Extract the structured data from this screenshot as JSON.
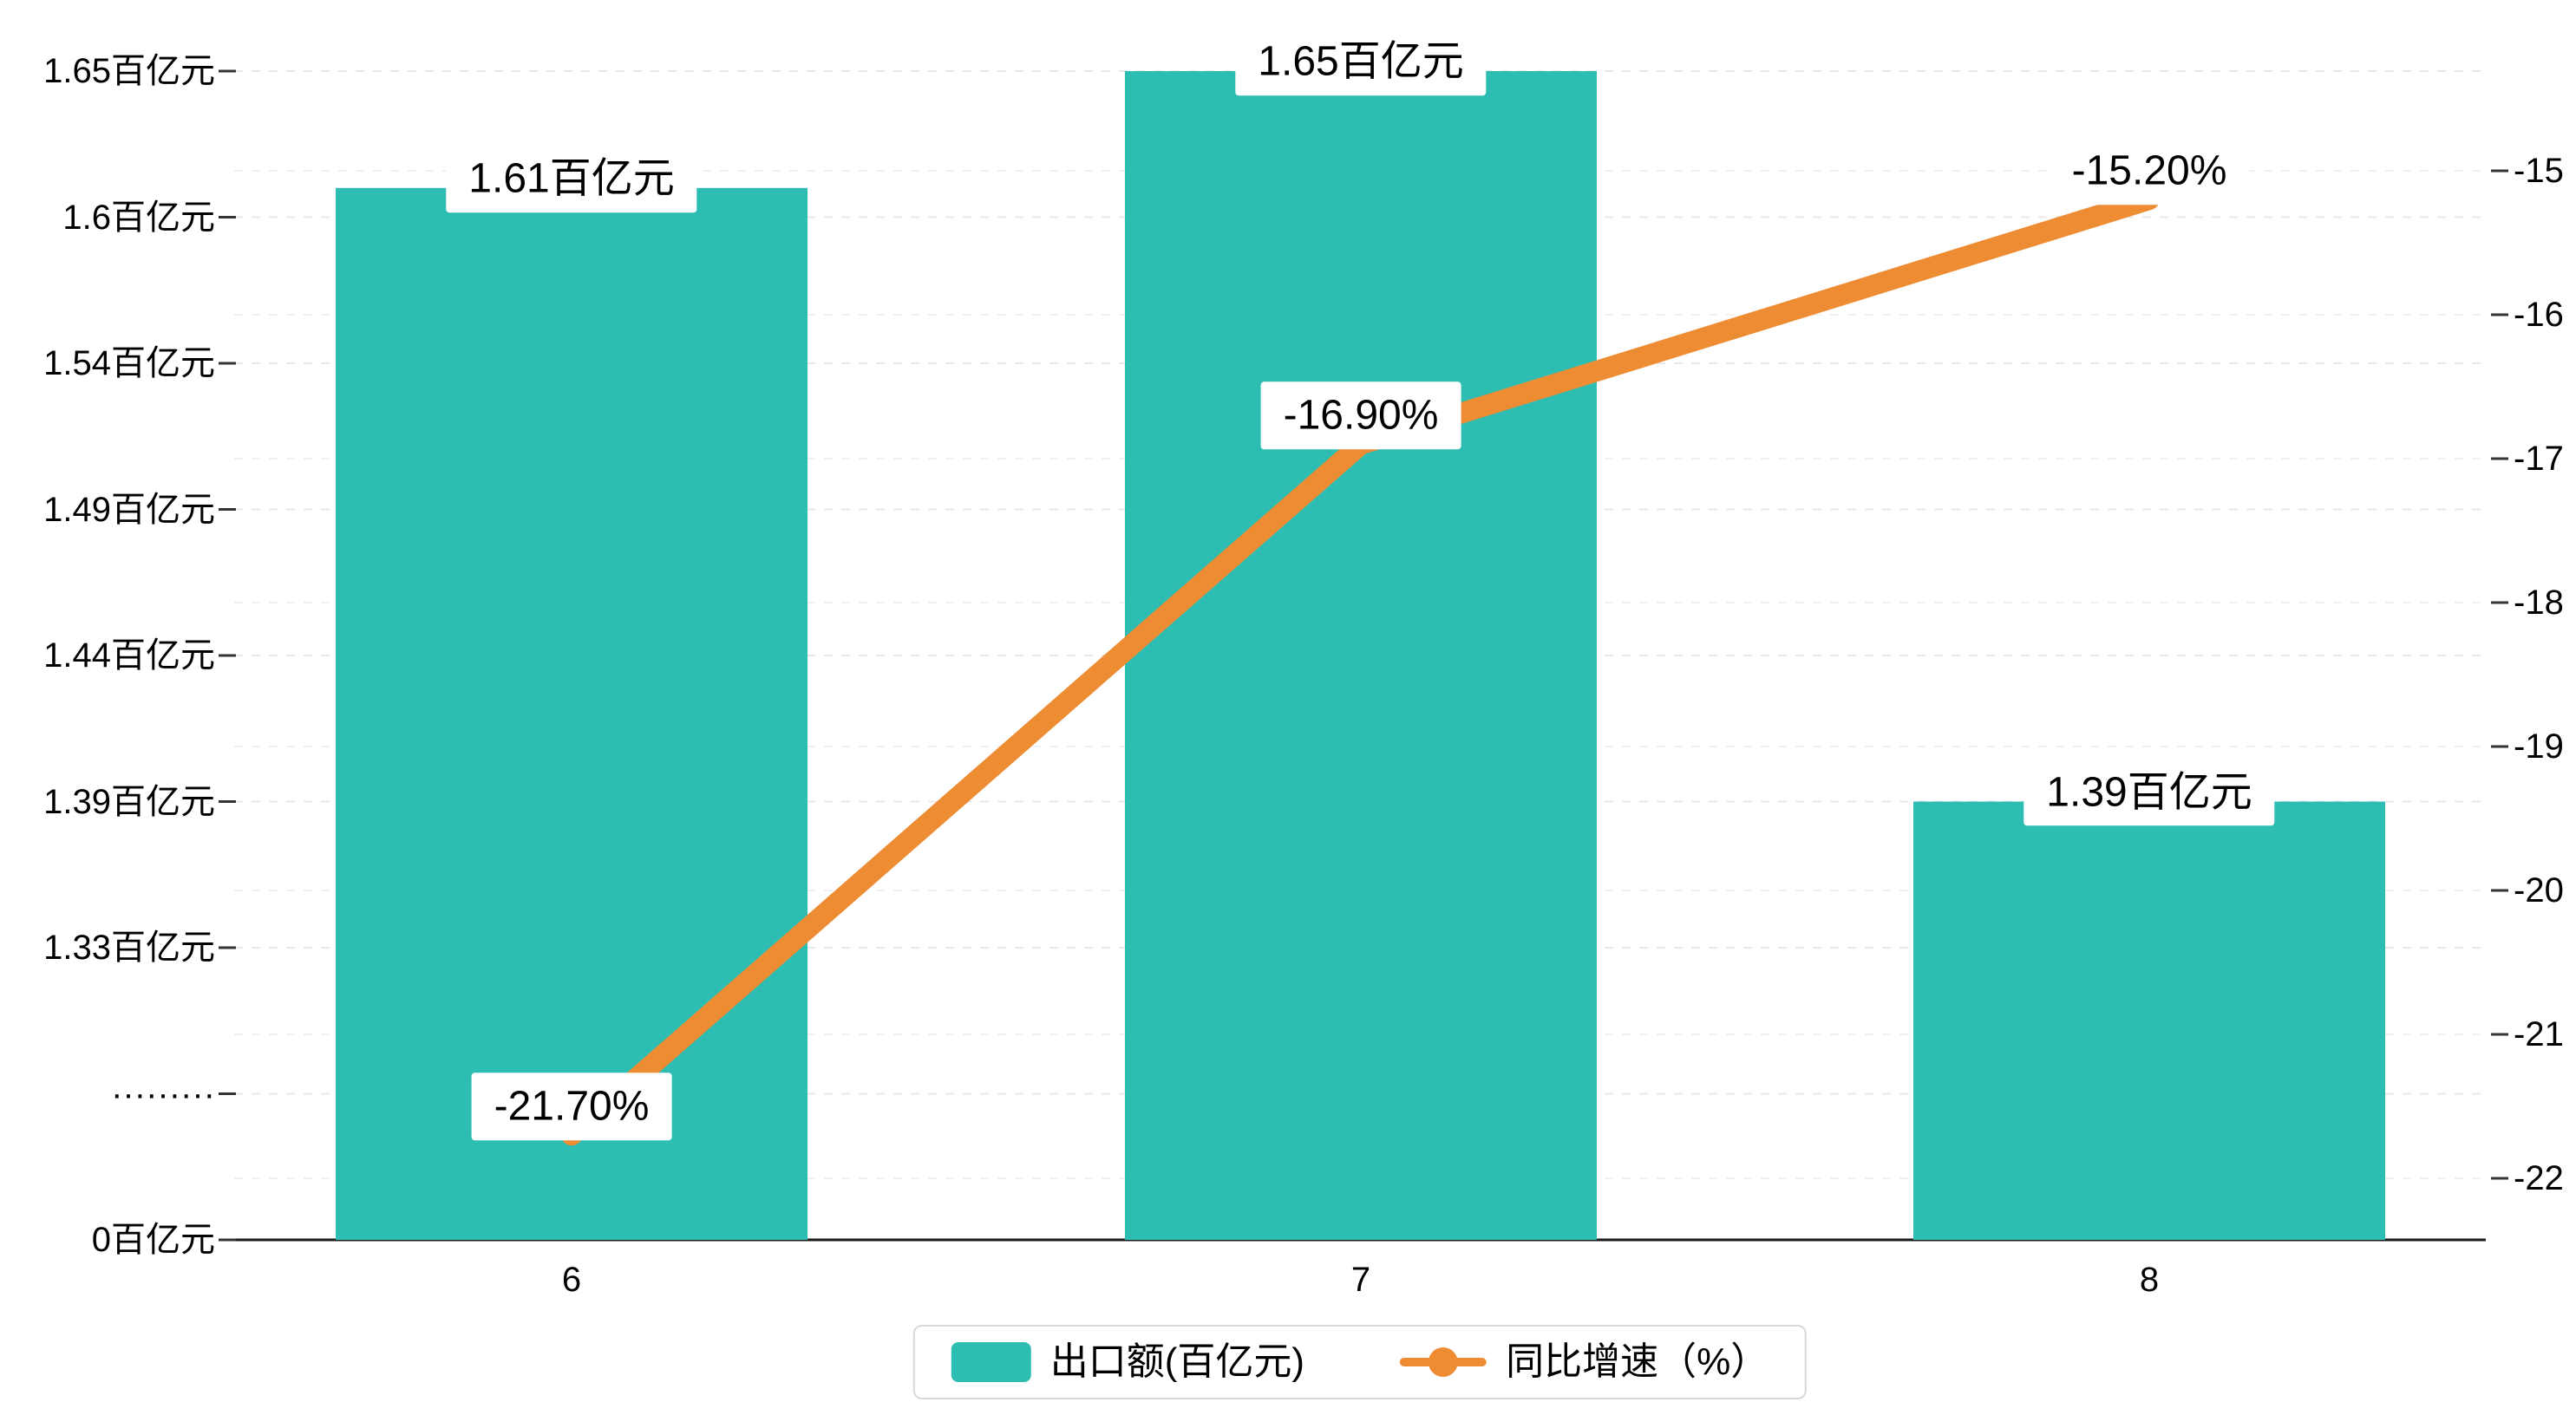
{
  "colors": {
    "bar": "#2dbdb2",
    "line": "#ee8c34",
    "grid_left": "#e8e8e8",
    "grid_right": "#f1f1f1",
    "axis_line": "#1a1a1a",
    "tick": "#333333",
    "text": "#000000",
    "label_box_bg": "#ffffff",
    "legend_border": "#d9d9d9",
    "background": "#ffffff"
  },
  "chart_data": {
    "type": "bar+line",
    "categories": [
      "6",
      "7",
      "8"
    ],
    "series": [
      {
        "name": "出口额(百亿元)",
        "type": "bar",
        "values": [
          1.61,
          1.65,
          1.39
        ],
        "data_labels": [
          "1.61百亿元",
          "1.65百亿元",
          "1.39百亿元"
        ],
        "color": "#2dbdb2",
        "value_axis": "left"
      },
      {
        "name": "同比增速（%）",
        "type": "line",
        "values": [
          -21.7,
          -16.9,
          -15.2
        ],
        "data_labels": [
          "-21.70%",
          "-16.90%",
          "-15.20%"
        ],
        "color": "#ee8c34",
        "value_axis": "right"
      }
    ],
    "left_axis": {
      "tick_labels": [
        "1.65百亿元",
        "1.6百亿元",
        "1.54百亿元",
        "1.49百亿元",
        "1.44百亿元",
        "1.39百亿元",
        "1.33百亿元",
        "·········",
        "0百亿元"
      ],
      "tick_values": [
        1.65,
        1.6,
        1.54,
        1.49,
        1.44,
        1.39,
        1.33,
        null,
        0
      ],
      "has_break": true
    },
    "right_axis": {
      "tick_labels": [
        "-15",
        "-16",
        "-17",
        "-18",
        "-19",
        "-20",
        "-21",
        "-22"
      ],
      "tick_values": [
        -15,
        -16,
        -17,
        -18,
        -19,
        -20,
        -21,
        -22
      ]
    },
    "x_axis": {
      "tick_labels": [
        "6",
        "7",
        "8"
      ]
    },
    "legend": {
      "items": [
        {
          "label": "出口额(百亿元)",
          "marker": "bar-swatch"
        },
        {
          "label": "同比增速（%）",
          "marker": "line-dot"
        }
      ],
      "position": "bottom-center"
    },
    "grid": "dashed-horizontal"
  }
}
